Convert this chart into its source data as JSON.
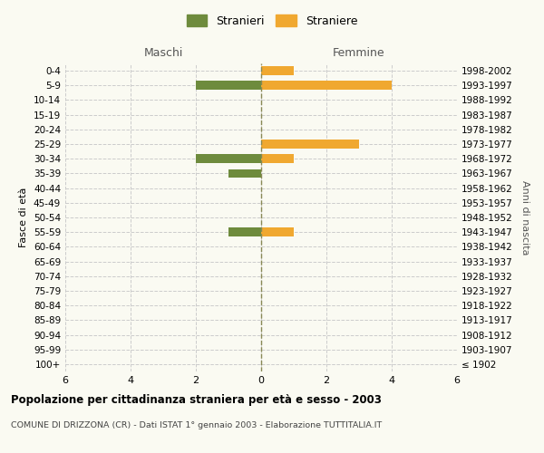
{
  "age_groups": [
    "100+",
    "95-99",
    "90-94",
    "85-89",
    "80-84",
    "75-79",
    "70-74",
    "65-69",
    "60-64",
    "55-59",
    "50-54",
    "45-49",
    "40-44",
    "35-39",
    "30-34",
    "25-29",
    "20-24",
    "15-19",
    "10-14",
    "5-9",
    "0-4"
  ],
  "birth_years": [
    "≤ 1902",
    "1903-1907",
    "1908-1912",
    "1913-1917",
    "1918-1922",
    "1923-1927",
    "1928-1932",
    "1933-1937",
    "1938-1942",
    "1943-1947",
    "1948-1952",
    "1953-1957",
    "1958-1962",
    "1963-1967",
    "1968-1972",
    "1973-1977",
    "1978-1982",
    "1983-1987",
    "1988-1992",
    "1993-1997",
    "1998-2002"
  ],
  "maschi": [
    0,
    0,
    0,
    0,
    0,
    0,
    0,
    0,
    0,
    1,
    0,
    0,
    0,
    1,
    2,
    0,
    0,
    0,
    0,
    2,
    0
  ],
  "femmine": [
    0,
    0,
    0,
    0,
    0,
    0,
    0,
    0,
    0,
    1,
    0,
    0,
    0,
    0,
    1,
    3,
    0,
    0,
    0,
    4,
    1
  ],
  "color_maschi": "#6e8b3d",
  "color_femmine": "#f0a830",
  "title": "Popolazione per cittadinanza straniera per età e sesso - 2003",
  "subtitle": "COMUNE DI DRIZZONA (CR) - Dati ISTAT 1° gennaio 2003 - Elaborazione TUTTITALIA.IT",
  "ylabel_left": "Fasce di età",
  "ylabel_right": "Anni di nascita",
  "xlabel_left": "Maschi",
  "xlabel_right": "Femmine",
  "legend_maschi": "Stranieri",
  "legend_femmine": "Straniere",
  "xlim": 6,
  "background_color": "#fafaf2",
  "grid_color": "#cccccc"
}
